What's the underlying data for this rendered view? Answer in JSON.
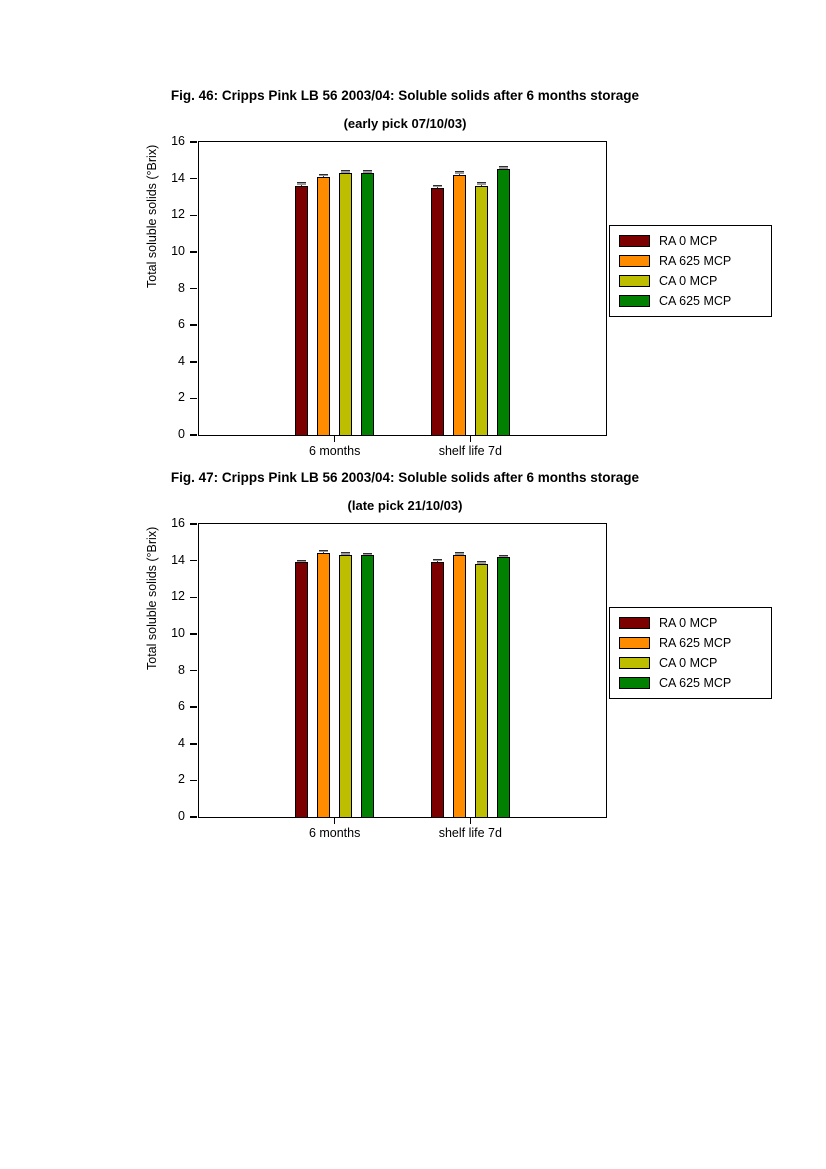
{
  "page": {
    "background": "#ffffff"
  },
  "figures": [
    {
      "title": "Fig. 46: Cripps Pink LB 56 2003/04: Soluble solids after 6 months storage",
      "subtitle": "(early pick 07/10/03)",
      "chart_data": {
        "type": "bar",
        "categories": [
          "6 months",
          "shelf life 7d"
        ],
        "series": [
          {
            "name": "RA 0 MCP",
            "color": "#7d0000",
            "values": [
              13.6,
              13.5
            ],
            "errors": [
              0.15,
              0.1
            ]
          },
          {
            "name": "RA 625 MCP",
            "color": "#ff8c00",
            "values": [
              14.1,
              14.2
            ],
            "errors": [
              0.1,
              0.15
            ]
          },
          {
            "name": "CA 0 MCP",
            "color": "#bebe00",
            "values": [
              14.3,
              13.6
            ],
            "errors": [
              0.1,
              0.15
            ]
          },
          {
            "name": "CA 625 MCP",
            "color": "#028002",
            "values": [
              14.3,
              14.5
            ],
            "errors": [
              0.1,
              0.12
            ]
          }
        ],
        "xlabel": "",
        "ylabel": "Total soluble solids (°Brix)",
        "ylim": [
          0,
          16
        ],
        "yticks": [
          0,
          2,
          4,
          6,
          8,
          10,
          12,
          14,
          16
        ],
        "grid": false,
        "legend_position": "right",
        "error_bars": true
      }
    },
    {
      "title": "Fig. 47: Cripps Pink LB 56 2003/04: Soluble solids after 6 months storage",
      "subtitle": "(late pick 21/10/03)",
      "chart_data": {
        "type": "bar",
        "categories": [
          "6 months",
          "shelf life 7d"
        ],
        "series": [
          {
            "name": "RA 0 MCP",
            "color": "#7d0000",
            "values": [
              13.9,
              13.9
            ],
            "errors": [
              0.1,
              0.15
            ]
          },
          {
            "name": "RA 625 MCP",
            "color": "#ff8c00",
            "values": [
              14.4,
              14.3
            ],
            "errors": [
              0.15,
              0.1
            ]
          },
          {
            "name": "CA 0 MCP",
            "color": "#bebe00",
            "values": [
              14.3,
              13.8
            ],
            "errors": [
              0.1,
              0.12
            ]
          },
          {
            "name": "CA 625 MCP",
            "color": "#028002",
            "values": [
              14.3,
              14.2
            ],
            "errors": [
              0.08,
              0.08
            ]
          }
        ],
        "xlabel": "",
        "ylabel": "Total soluble solids (°Brix)",
        "ylim": [
          0,
          16
        ],
        "yticks": [
          0,
          2,
          4,
          6,
          8,
          10,
          12,
          14,
          16
        ],
        "grid": false,
        "legend_position": "right",
        "error_bars": true
      }
    }
  ]
}
